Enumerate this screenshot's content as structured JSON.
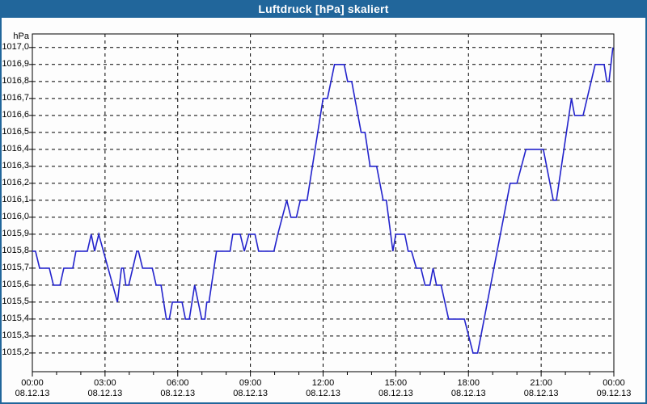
{
  "window": {
    "title": "Luftdruck [hPa] skaliert"
  },
  "colors": {
    "titlebar": "#21669b",
    "window_border": "#21669b",
    "plot_background": "#ffffff",
    "grid": "#000000",
    "axis": "#000000",
    "series_line": "#2323cc"
  },
  "chart_data": {
    "type": "line",
    "title": "Luftdruck [hPa] skaliert",
    "y_unit_label": "hPa",
    "grid": true,
    "legend": "none",
    "ylim": [
      1015.09,
      1017.08
    ],
    "xlim_hours": [
      0,
      24
    ],
    "y_axis": {
      "tick_step_hpa": 0.1,
      "ticks": [
        {
          "label": "1017,0",
          "value": 1017.0
        },
        {
          "label": "1016,9",
          "value": 1016.9
        },
        {
          "label": "1016,8",
          "value": 1016.8
        },
        {
          "label": "1016,7",
          "value": 1016.7
        },
        {
          "label": "1016,6",
          "value": 1016.6
        },
        {
          "label": "1016,5",
          "value": 1016.5
        },
        {
          "label": "1016,4",
          "value": 1016.4
        },
        {
          "label": "1016,3",
          "value": 1016.3
        },
        {
          "label": "1016,2",
          "value": 1016.2
        },
        {
          "label": "1016,1",
          "value": 1016.1
        },
        {
          "label": "1016,0",
          "value": 1016.0
        },
        {
          "label": "1015,9",
          "value": 1015.9
        },
        {
          "label": "1015,8",
          "value": 1015.8
        },
        {
          "label": "1015,7",
          "value": 1015.7
        },
        {
          "label": "1015,6",
          "value": 1015.6
        },
        {
          "label": "1015,5",
          "value": 1015.5
        },
        {
          "label": "1015,4",
          "value": 1015.4
        },
        {
          "label": "1015,3",
          "value": 1015.3
        },
        {
          "label": "1015,2",
          "value": 1015.2
        }
      ]
    },
    "x_axis": {
      "major_tick_hours": 3,
      "minor_tick_hours": 1,
      "ticks": [
        {
          "time": "00:00",
          "date": "08.12.13",
          "hour": 0
        },
        {
          "time": "03:00",
          "date": "08.12.13",
          "hour": 3
        },
        {
          "time": "06:00",
          "date": "08.12.13",
          "hour": 6
        },
        {
          "time": "09:00",
          "date": "08.12.13",
          "hour": 9
        },
        {
          "time": "12:00",
          "date": "08.12.13",
          "hour": 12
        },
        {
          "time": "15:00",
          "date": "08.12.13",
          "hour": 15
        },
        {
          "time": "18:00",
          "date": "08.12.13",
          "hour": 18
        },
        {
          "time": "21:00",
          "date": "08.12.13",
          "hour": 21
        },
        {
          "time": "00:00",
          "date": "09.12.13",
          "hour": 24
        }
      ]
    },
    "series": [
      {
        "name": "Luftdruck",
        "color": "#2323cc",
        "points_hour_hpa": [
          [
            0.0,
            1015.8
          ],
          [
            0.13,
            1015.8
          ],
          [
            0.3,
            1015.7
          ],
          [
            0.7,
            1015.7
          ],
          [
            0.87,
            1015.6
          ],
          [
            1.14,
            1015.6
          ],
          [
            1.3,
            1015.7
          ],
          [
            1.67,
            1015.7
          ],
          [
            1.8,
            1015.8
          ],
          [
            2.27,
            1015.8
          ],
          [
            2.43,
            1015.9
          ],
          [
            2.57,
            1015.8
          ],
          [
            2.74,
            1015.9
          ],
          [
            3.51,
            1015.5
          ],
          [
            3.68,
            1015.7
          ],
          [
            3.76,
            1015.7
          ],
          [
            3.86,
            1015.6
          ],
          [
            3.98,
            1015.6
          ],
          [
            4.31,
            1015.8
          ],
          [
            4.38,
            1015.8
          ],
          [
            4.55,
            1015.7
          ],
          [
            4.95,
            1015.7
          ],
          [
            5.11,
            1015.6
          ],
          [
            5.31,
            1015.6
          ],
          [
            5.53,
            1015.4
          ],
          [
            5.65,
            1015.4
          ],
          [
            5.78,
            1015.5
          ],
          [
            6.18,
            1015.5
          ],
          [
            6.32,
            1015.4
          ],
          [
            6.48,
            1015.4
          ],
          [
            6.7,
            1015.6
          ],
          [
            6.99,
            1015.4
          ],
          [
            7.12,
            1015.4
          ],
          [
            7.2,
            1015.5
          ],
          [
            7.29,
            1015.5
          ],
          [
            7.6,
            1015.8
          ],
          [
            8.16,
            1015.8
          ],
          [
            8.27,
            1015.9
          ],
          [
            8.58,
            1015.9
          ],
          [
            8.75,
            1015.8
          ],
          [
            8.94,
            1015.9
          ],
          [
            9.19,
            1015.9
          ],
          [
            9.34,
            1015.8
          ],
          [
            9.97,
            1015.8
          ],
          [
            10.13,
            1015.9
          ],
          [
            10.5,
            1016.1
          ],
          [
            10.67,
            1016.0
          ],
          [
            10.9,
            1016.0
          ],
          [
            11.06,
            1016.1
          ],
          [
            11.34,
            1016.1
          ],
          [
            12.0,
            1016.7
          ],
          [
            12.18,
            1016.7
          ],
          [
            12.47,
            1016.9
          ],
          [
            12.87,
            1016.9
          ],
          [
            13.01,
            1016.8
          ],
          [
            13.18,
            1016.8
          ],
          [
            13.57,
            1016.5
          ],
          [
            13.73,
            1016.5
          ],
          [
            13.94,
            1016.3
          ],
          [
            14.21,
            1016.3
          ],
          [
            14.48,
            1016.1
          ],
          [
            14.61,
            1016.1
          ],
          [
            14.88,
            1015.8
          ],
          [
            15.0,
            1015.9
          ],
          [
            15.37,
            1015.9
          ],
          [
            15.51,
            1015.8
          ],
          [
            15.65,
            1015.8
          ],
          [
            15.85,
            1015.7
          ],
          [
            16.04,
            1015.7
          ],
          [
            16.21,
            1015.6
          ],
          [
            16.41,
            1015.6
          ],
          [
            16.54,
            1015.7
          ],
          [
            16.68,
            1015.6
          ],
          [
            16.87,
            1015.6
          ],
          [
            17.18,
            1015.4
          ],
          [
            17.83,
            1015.4
          ],
          [
            18.19,
            1015.2
          ],
          [
            18.38,
            1015.2
          ],
          [
            19.05,
            1015.7
          ],
          [
            19.72,
            1016.2
          ],
          [
            20.0,
            1016.2
          ],
          [
            20.37,
            1016.4
          ],
          [
            21.09,
            1016.4
          ],
          [
            21.5,
            1016.1
          ],
          [
            21.63,
            1016.1
          ],
          [
            22.25,
            1016.7
          ],
          [
            22.38,
            1016.6
          ],
          [
            22.73,
            1016.6
          ],
          [
            23.23,
            1016.9
          ],
          [
            23.6,
            1016.9
          ],
          [
            23.71,
            1016.8
          ],
          [
            23.8,
            1016.8
          ],
          [
            23.96,
            1017.0
          ]
        ]
      }
    ]
  }
}
